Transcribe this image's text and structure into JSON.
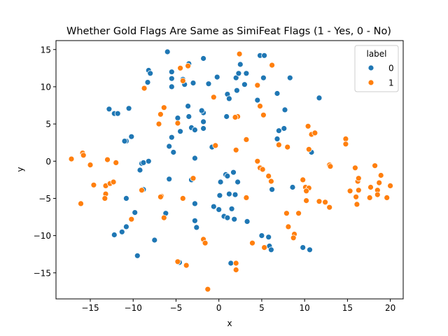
{
  "chart_data": {
    "type": "scatter",
    "title": "Whether Gold Flags Are Same as SimiFeat Flags (1 - Yes, 0 - No)",
    "xlabel": "x",
    "ylabel": "y",
    "xlim": [
      -19,
      21.5
    ],
    "ylim": [
      -18.5,
      16.2
    ],
    "xticks": [
      -15,
      -10,
      -5,
      0,
      5,
      10,
      15,
      20
    ],
    "yticks": [
      -15,
      -10,
      -5,
      0,
      5,
      10,
      15
    ],
    "grid": false,
    "legend": {
      "title": "label",
      "placement": "top-right",
      "entries": [
        {
          "label": "0",
          "color": "#1f77b4"
        },
        {
          "label": "1",
          "color": "#ff7f0e"
        }
      ]
    },
    "series": [
      {
        "name": "0",
        "color": "#1f77b4",
        "points": [
          [
            -12.8,
            7.0
          ],
          [
            -12.2,
            6.4
          ],
          [
            -11.8,
            6.4
          ],
          [
            -10.5,
            7.1
          ],
          [
            -8.2,
            12.2
          ],
          [
            -8.0,
            11.8
          ],
          [
            -8.3,
            10.6
          ],
          [
            -6.0,
            14.7
          ],
          [
            -5.5,
            12.0
          ],
          [
            -5.5,
            11.1
          ],
          [
            -5.5,
            10.0
          ],
          [
            -4.2,
            11.0
          ],
          [
            -4.0,
            10.3
          ],
          [
            -3.5,
            13.1
          ],
          [
            -3.0,
            10.5
          ],
          [
            -1.8,
            13.8
          ],
          [
            -1.2,
            10.4
          ],
          [
            -0.2,
            11.3
          ],
          [
            2.0,
            11.2
          ],
          [
            2.3,
            11.8
          ],
          [
            2.5,
            13.0
          ],
          [
            3.2,
            11.8
          ],
          [
            4.8,
            14.2
          ],
          [
            5.3,
            14.2
          ],
          [
            5.2,
            11.2
          ],
          [
            6.8,
            9.1
          ],
          [
            8.3,
            11.2
          ],
          [
            11.7,
            8.5
          ],
          [
            1.0,
            9.0
          ],
          [
            1.2,
            8.4
          ],
          [
            2.1,
            9.5
          ],
          [
            3.0,
            10.3
          ],
          [
            4.5,
            8.2
          ],
          [
            0.9,
            6.0
          ],
          [
            -1.8,
            6.5
          ],
          [
            -2.0,
            6.8
          ],
          [
            -3.6,
            7.4
          ],
          [
            -3.5,
            6.0
          ],
          [
            -4.8,
            5.8
          ],
          [
            -3.2,
            4.5
          ],
          [
            -2.8,
            4.2
          ],
          [
            -1.8,
            5.3
          ],
          [
            -1.8,
            4.4
          ],
          [
            -4.5,
            4.0
          ],
          [
            -5.8,
            2.0
          ],
          [
            -5.3,
            1.2
          ],
          [
            -5.5,
            3.2
          ],
          [
            -10.2,
            3.3
          ],
          [
            -10.8,
            2.7
          ],
          [
            -11.0,
            2.7
          ],
          [
            -9.0,
            -0.3
          ],
          [
            -8.8,
            -0.2
          ],
          [
            -8.2,
            0.0
          ],
          [
            -9.2,
            -1.2
          ],
          [
            -8.8,
            -3.8
          ],
          [
            -10.8,
            -5.0
          ],
          [
            -9.8,
            -6.9
          ],
          [
            -10.8,
            -8.8
          ],
          [
            -11.3,
            -9.5
          ],
          [
            -12.2,
            -9.9
          ],
          [
            -9.5,
            -12.7
          ],
          [
            -5.8,
            -2.4
          ],
          [
            -6.2,
            -7.0
          ],
          [
            -7.5,
            -10.6
          ],
          [
            -3.2,
            -2.5
          ],
          [
            -2.8,
            -5.7
          ],
          [
            -2.8,
            0.4
          ],
          [
            -2.8,
            -8.0
          ],
          [
            -2.6,
            -8.9
          ],
          [
            -4.6,
            -13.6
          ],
          [
            -0.8,
            1.9
          ],
          [
            0.8,
            -1.8
          ],
          [
            1.0,
            -2.0
          ],
          [
            1.7,
            -1.5
          ],
          [
            2.2,
            -2.8
          ],
          [
            1.2,
            -4.4
          ],
          [
            1.9,
            -4.5
          ],
          [
            0.2,
            -2.8
          ],
          [
            0.1,
            -4.6
          ],
          [
            -0.6,
            -6.1
          ],
          [
            0.0,
            -6.5
          ],
          [
            0.6,
            -7.4
          ],
          [
            1.0,
            -7.6
          ],
          [
            1.5,
            -6.4
          ],
          [
            1.8,
            -7.8
          ],
          [
            3.3,
            -8.1
          ],
          [
            1.4,
            -13.7
          ],
          [
            5.0,
            -10.0
          ],
          [
            5.8,
            -10.2
          ],
          [
            5.9,
            -11.4
          ],
          [
            6.1,
            -11.9
          ],
          [
            6.2,
            -3.8
          ],
          [
            6.8,
            3.0
          ],
          [
            7.0,
            4.1
          ],
          [
            7.6,
            4.4
          ],
          [
            7.7,
            6.9
          ],
          [
            8.6,
            -3.5
          ],
          [
            9.8,
            -11.6
          ],
          [
            10.6,
            -11.9
          ],
          [
            10.8,
            1.2
          ]
        ]
      },
      {
        "name": "1",
        "color": "#ff7f0e",
        "points": [
          [
            -17.2,
            0.3
          ],
          [
            -15.9,
            1.1
          ],
          [
            -15.8,
            0.8
          ],
          [
            -16.1,
            -5.7
          ],
          [
            -15.0,
            -0.5
          ],
          [
            -14.6,
            -3.2
          ],
          [
            -13.2,
            -4.4
          ],
          [
            -13.3,
            -5.0
          ],
          [
            -13.2,
            -3.3
          ],
          [
            -13.0,
            0.2
          ],
          [
            -12.7,
            -3.0
          ],
          [
            -12.3,
            -2.8
          ],
          [
            -12.0,
            -0.2
          ],
          [
            -10.2,
            -7.8
          ],
          [
            -9.0,
            -3.9
          ],
          [
            -8.7,
            9.8
          ],
          [
            -7.0,
            5.0
          ],
          [
            -6.8,
            6.3
          ],
          [
            -6.4,
            7.2
          ],
          [
            -6.7,
            -4.7
          ],
          [
            -6.8,
            -4.8
          ],
          [
            -6.4,
            -7.6
          ],
          [
            -4.8,
            5.1
          ],
          [
            -4.2,
            10.8
          ],
          [
            -4.5,
            12.5
          ],
          [
            -3.6,
            12.8
          ],
          [
            -4.8,
            -13.5
          ],
          [
            -3.8,
            -14.0
          ],
          [
            -4.2,
            -5.0
          ],
          [
            -3.0,
            -2.3
          ],
          [
            -1.8,
            -10.5
          ],
          [
            -1.6,
            -11.0
          ],
          [
            -1.3,
            -17.2
          ],
          [
            -0.6,
            8.6
          ],
          [
            -0.4,
            2.1
          ],
          [
            2.0,
            1.5
          ],
          [
            2.2,
            6.0
          ],
          [
            2.4,
            14.4
          ],
          [
            1.9,
            5.9
          ],
          [
            3.2,
            2.9
          ],
          [
            3.2,
            -4.9
          ],
          [
            4.5,
            10.2
          ],
          [
            4.8,
            7.4
          ],
          [
            5.2,
            6.2
          ],
          [
            6.2,
            12.9
          ],
          [
            4.5,
            0.0
          ],
          [
            4.8,
            -0.9
          ],
          [
            5.1,
            -1.1
          ],
          [
            5.8,
            -2.0
          ],
          [
            6.1,
            -2.7
          ],
          [
            3.9,
            -11.0
          ],
          [
            5.3,
            -11.6
          ],
          [
            2.0,
            -13.7
          ],
          [
            2.0,
            -14.6
          ],
          [
            7.0,
            2.2
          ],
          [
            8.0,
            1.9
          ],
          [
            7.9,
            -7.0
          ],
          [
            8.1,
            -8.8
          ],
          [
            8.8,
            -9.8
          ],
          [
            8.7,
            -10.3
          ],
          [
            9.3,
            -7.0
          ],
          [
            9.8,
            -2.5
          ],
          [
            10.1,
            -3.5
          ],
          [
            10.5,
            -3.6
          ],
          [
            10.2,
            -4.0
          ],
          [
            10.2,
            -5.3
          ],
          [
            10.4,
            4.7
          ],
          [
            10.5,
            1.6
          ],
          [
            10.8,
            3.6
          ],
          [
            11.2,
            3.8
          ],
          [
            11.7,
            -5.4
          ],
          [
            12.4,
            -5.5
          ],
          [
            12.9,
            -0.5
          ],
          [
            13.0,
            -0.7
          ],
          [
            12.9,
            -6.2
          ],
          [
            14.8,
            3.0
          ],
          [
            14.8,
            2.3
          ],
          [
            15.3,
            -4.0
          ],
          [
            15.9,
            -0.9
          ],
          [
            16.0,
            -4.8
          ],
          [
            16.1,
            -5.8
          ],
          [
            16.2,
            -2.7
          ],
          [
            16.3,
            -2.3
          ],
          [
            16.3,
            -3.9
          ],
          [
            17.7,
            -3.5
          ],
          [
            17.6,
            -4.9
          ],
          [
            18.2,
            -0.6
          ],
          [
            18.5,
            -3.9
          ],
          [
            18.5,
            -4.5
          ],
          [
            18.9,
            -1.9
          ],
          [
            18.7,
            -2.9
          ],
          [
            19.6,
            -4.9
          ],
          [
            20.0,
            -3.3
          ]
        ]
      }
    ]
  }
}
